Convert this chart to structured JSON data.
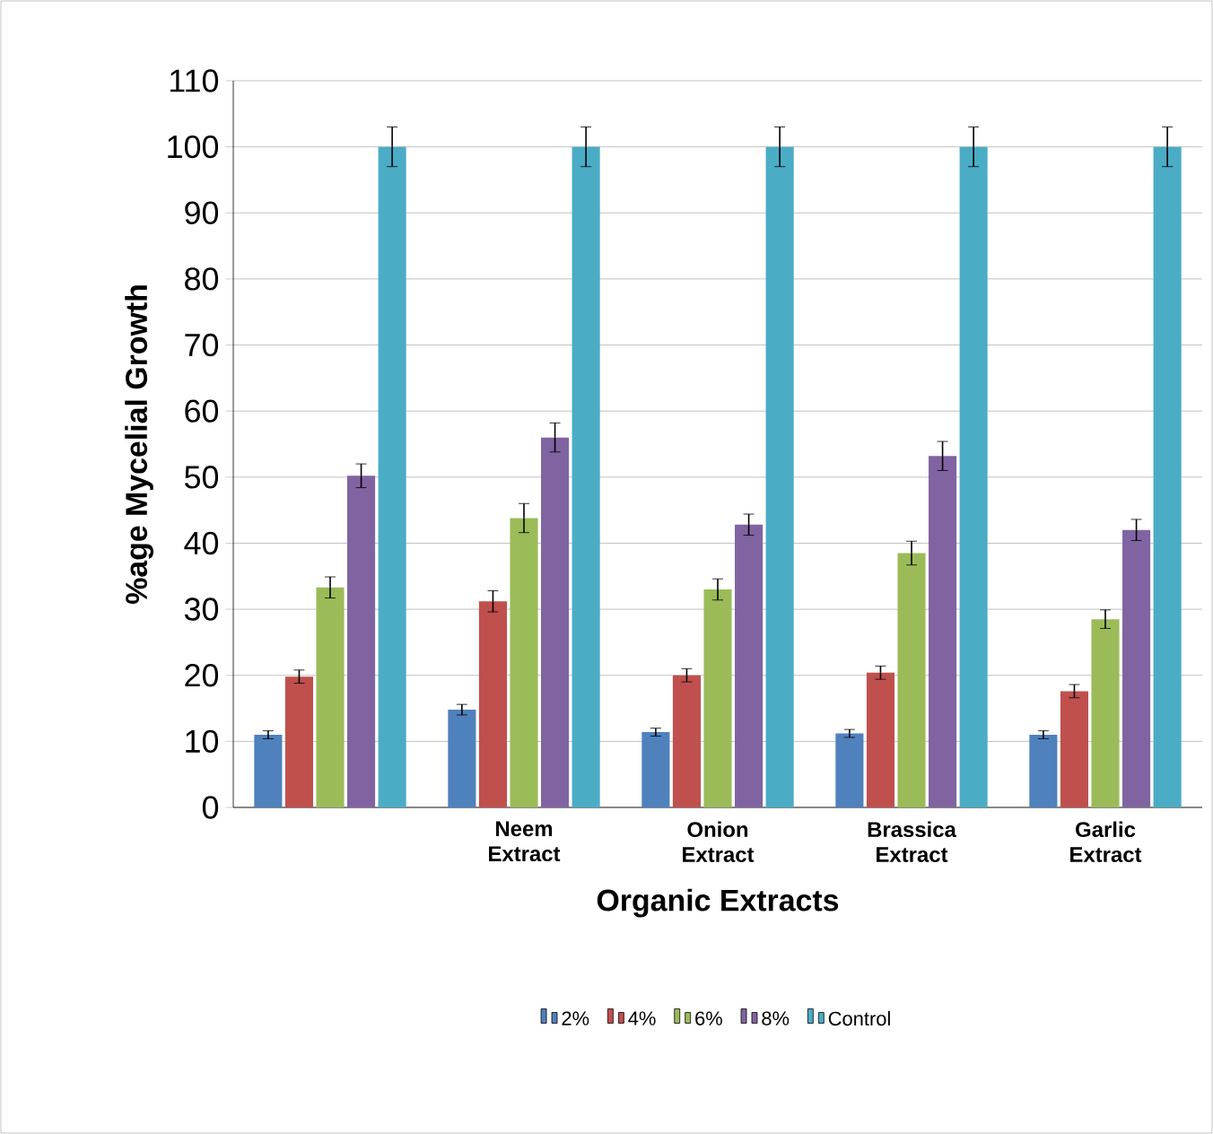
{
  "chart_data": {
    "type": "bar",
    "xlabel": "Organic Extracts",
    "ylabel": "%age Mycelial Growth",
    "categories": [
      null,
      "Neem Extract",
      "Onion Extract",
      "Brassica Extract",
      "Garlic Extract"
    ],
    "series": [
      {
        "name": "2%",
        "color": "#4f81bd",
        "values": [
          11,
          14.8,
          11.4,
          11.2,
          11
        ],
        "errors": [
          0.6,
          0.8,
          0.6,
          0.6,
          0.6
        ]
      },
      {
        "name": "4%",
        "color": "#c0504d",
        "values": [
          19.8,
          31.2,
          20,
          20.4,
          17.6
        ],
        "errors": [
          1,
          1.6,
          1,
          1,
          1
        ]
      },
      {
        "name": "6%",
        "color": "#9bbb59",
        "values": [
          33.3,
          43.8,
          33,
          38.5,
          28.5
        ],
        "errors": [
          1.6,
          2.2,
          1.6,
          1.8,
          1.4
        ]
      },
      {
        "name": "8%",
        "color": "#8064a2",
        "values": [
          50.2,
          56,
          42.8,
          53.2,
          42
        ],
        "errors": [
          1.8,
          2.2,
          1.6,
          2.2,
          1.6
        ]
      },
      {
        "name": "Control",
        "color": "#4bacc6",
        "values": [
          100,
          100,
          100,
          100,
          100
        ],
        "errors": [
          3,
          3,
          3,
          3,
          3
        ]
      }
    ],
    "ylim": [
      0,
      110
    ],
    "yticks": [
      0,
      10,
      20,
      30,
      40,
      50,
      60,
      70,
      80,
      90,
      100,
      110
    ],
    "grid": "y",
    "legend": "bottom"
  }
}
